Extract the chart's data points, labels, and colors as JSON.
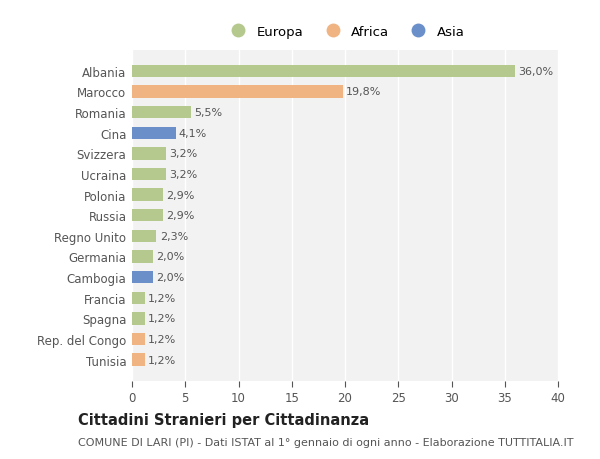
{
  "countries": [
    "Albania",
    "Marocco",
    "Romania",
    "Cina",
    "Svizzera",
    "Ucraina",
    "Polonia",
    "Russia",
    "Regno Unito",
    "Germania",
    "Cambogia",
    "Francia",
    "Spagna",
    "Rep. del Congo",
    "Tunisia"
  ],
  "values": [
    36.0,
    19.8,
    5.5,
    4.1,
    3.2,
    3.2,
    2.9,
    2.9,
    2.3,
    2.0,
    2.0,
    1.2,
    1.2,
    1.2,
    1.2
  ],
  "labels": [
    "36,0%",
    "19,8%",
    "5,5%",
    "4,1%",
    "3,2%",
    "3,2%",
    "2,9%",
    "2,9%",
    "2,3%",
    "2,0%",
    "2,0%",
    "1,2%",
    "1,2%",
    "1,2%",
    "1,2%"
  ],
  "continents": [
    "Europa",
    "Africa",
    "Europa",
    "Asia",
    "Europa",
    "Europa",
    "Europa",
    "Europa",
    "Europa",
    "Europa",
    "Asia",
    "Europa",
    "Europa",
    "Africa",
    "Africa"
  ],
  "colors": {
    "Europa": "#b5c98e",
    "Africa": "#f0b482",
    "Asia": "#6b8fc9"
  },
  "legend_entries": [
    "Europa",
    "Africa",
    "Asia"
  ],
  "xlim": [
    0,
    40
  ],
  "xticks": [
    0,
    5,
    10,
    15,
    20,
    25,
    30,
    35,
    40
  ],
  "background_color": "#ffffff",
  "plot_bg_color": "#f2f2f2",
  "grid_color": "#ffffff",
  "title": "Cittadini Stranieri per Cittadinanza",
  "subtitle": "COMUNE DI LARI (PI) - Dati ISTAT al 1° gennaio di ogni anno - Elaborazione TUTTITALIA.IT",
  "title_fontsize": 10.5,
  "subtitle_fontsize": 8.0,
  "bar_height": 0.6,
  "label_fontsize": 8.0,
  "ytick_fontsize": 8.5,
  "xtick_fontsize": 8.5,
  "legend_fontsize": 9.5
}
